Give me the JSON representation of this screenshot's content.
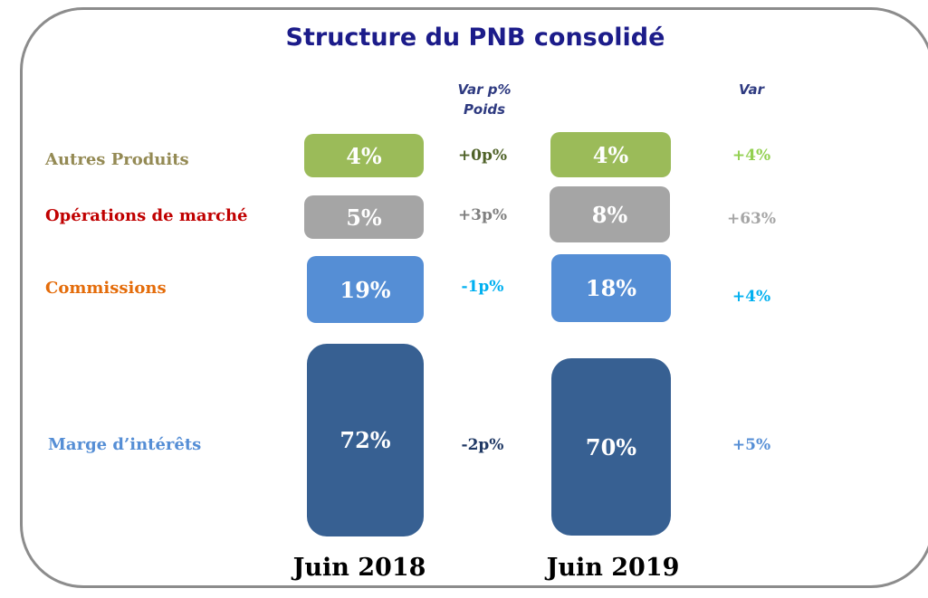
{
  "title": "Structure du PNB consolidé",
  "headers": {
    "var_p": "Var  p%",
    "poids": "Poids",
    "var": "Var"
  },
  "rows": [
    {
      "label": "Autres Produits",
      "v2018": "4%",
      "var_p": "+0p%",
      "v2019": "4%",
      "var": "+4%"
    },
    {
      "label": "Opérations de marché",
      "v2018": "5%",
      "var_p": "+3p%",
      "v2019": "8%",
      "var": "+63%"
    },
    {
      "label": "Commissions",
      "v2018": "19%",
      "var_p": "-1p%",
      "v2019": "18%",
      "var": "+4%"
    },
    {
      "label": "Marge d’intérêts",
      "v2018": "72%",
      "var_p": "-2p%",
      "v2019": "70%",
      "var": "+5%"
    }
  ],
  "years": [
    "Juin 2018",
    "Juin 2019"
  ]
}
